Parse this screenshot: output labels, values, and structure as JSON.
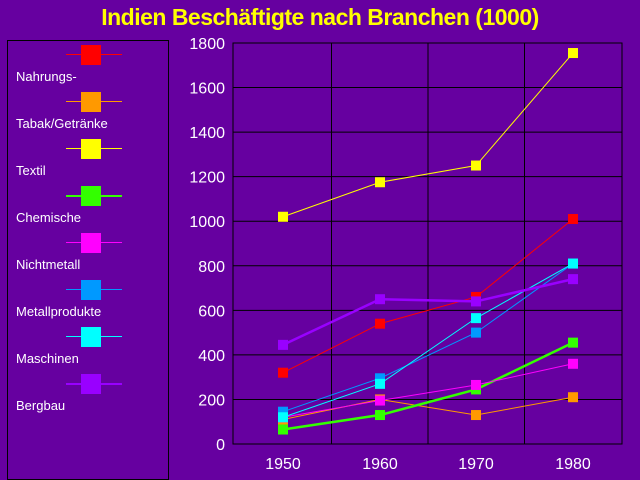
{
  "chart_data": {
    "type": "line",
    "title": "Indien Beschäftigte nach Branchen (1000)",
    "xlabel": "",
    "ylabel": "",
    "categories": [
      "1950",
      "1960",
      "1970",
      "1980"
    ],
    "ylim": [
      0,
      1800
    ],
    "yticks": [
      "0",
      "200",
      "400",
      "600",
      "800",
      "1000",
      "1200",
      "1400",
      "1600",
      "1800"
    ],
    "grid": "on",
    "legend_position": "left",
    "series": [
      {
        "name": "Nahrungs-",
        "color": "#ff0000",
        "values": [
          320,
          540,
          660,
          1010
        ]
      },
      {
        "name": "Tabak/Getränke",
        "color": "#ff9900",
        "values": [
          110,
          200,
          130,
          210
        ]
      },
      {
        "name": "Textil",
        "color": "#ffff00",
        "values": [
          1020,
          1175,
          1250,
          1755
        ]
      },
      {
        "name": "Chemische",
        "color": "#33ff00",
        "values": [
          65,
          130,
          245,
          455
        ]
      },
      {
        "name": "Nichtmetall",
        "color": "#ff00ff",
        "values": [
          120,
          195,
          265,
          360
        ]
      },
      {
        "name": "Metallprodukte",
        "color": "#0099ff",
        "values": [
          145,
          295,
          500,
          810
        ]
      },
      {
        "name": "Maschinen",
        "color": "#00ffff",
        "values": [
          120,
          270,
          565,
          810
        ]
      },
      {
        "name": "Bergbau",
        "color": "#9900ff",
        "values": [
          445,
          650,
          640,
          740
        ]
      }
    ]
  }
}
